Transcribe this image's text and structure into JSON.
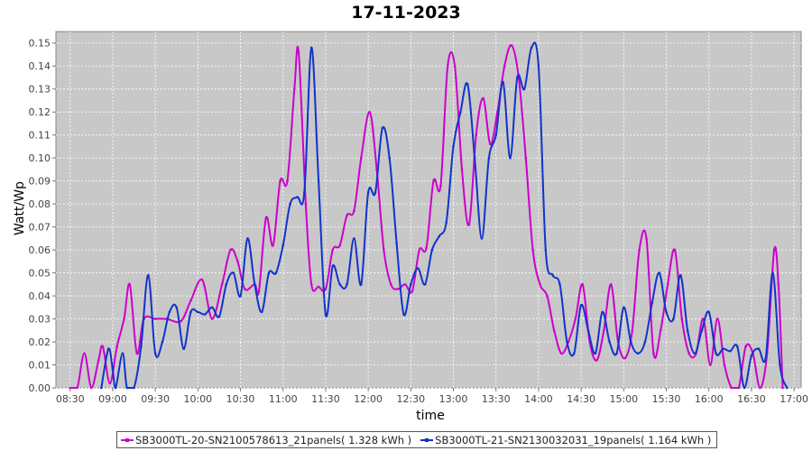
{
  "chart_data": {
    "type": "line",
    "title": "17-11-2023",
    "xlabel": "time",
    "ylabel": "Watt/Wp",
    "xlim": [
      "08:20",
      "17:05"
    ],
    "ylim": [
      0,
      0.155
    ],
    "x_ticks": [
      "08:30",
      "09:00",
      "09:30",
      "10:00",
      "10:30",
      "11:00",
      "11:30",
      "12:00",
      "12:30",
      "13:00",
      "13:30",
      "14:00",
      "14:30",
      "15:00",
      "15:30",
      "16:00",
      "16:30",
      "17:00"
    ],
    "y_ticks": [
      "0.00",
      "0.01",
      "0.02",
      "0.03",
      "0.04",
      "0.05",
      "0.06",
      "0.07",
      "0.08",
      "0.09",
      "0.10",
      "0.11",
      "0.12",
      "0.13",
      "0.14",
      "0.15"
    ],
    "grid": true,
    "legend_position": "bottom",
    "series": [
      {
        "name": "SB3000TL-20-SN2100578613_21panels( 1.328 kWh )",
        "color": "#cc00cc",
        "points": [
          [
            "08:30",
            0
          ],
          [
            "08:35",
            0
          ],
          [
            "08:40",
            0.015
          ],
          [
            "08:45",
            0
          ],
          [
            "08:50",
            0.012
          ],
          [
            "08:53",
            0.018
          ],
          [
            "08:58",
            0.002
          ],
          [
            "09:03",
            0.018
          ],
          [
            "09:08",
            0.03
          ],
          [
            "09:12",
            0.045
          ],
          [
            "09:17",
            0.015
          ],
          [
            "09:22",
            0.03
          ],
          [
            "09:30",
            0.03
          ],
          [
            "09:38",
            0.03
          ],
          [
            "09:48",
            0.029
          ],
          [
            "09:55",
            0.038
          ],
          [
            "10:03",
            0.047
          ],
          [
            "10:10",
            0.03
          ],
          [
            "10:17",
            0.045
          ],
          [
            "10:23",
            0.06
          ],
          [
            "10:28",
            0.055
          ],
          [
            "10:33",
            0.043
          ],
          [
            "10:40",
            0.045
          ],
          [
            "10:43",
            0.042
          ],
          [
            "10:48",
            0.074
          ],
          [
            "10:53",
            0.062
          ],
          [
            "10:58",
            0.09
          ],
          [
            "11:03",
            0.09
          ],
          [
            "11:08",
            0.13
          ],
          [
            "11:11",
            0.146
          ],
          [
            "11:16",
            0.08
          ],
          [
            "11:20",
            0.045
          ],
          [
            "11:25",
            0.044
          ],
          [
            "11:30",
            0.043
          ],
          [
            "11:35",
            0.06
          ],
          [
            "11:40",
            0.062
          ],
          [
            "11:45",
            0.075
          ],
          [
            "11:50",
            0.077
          ],
          [
            "11:55",
            0.1
          ],
          [
            "12:01",
            0.12
          ],
          [
            "12:06",
            0.095
          ],
          [
            "12:11",
            0.06
          ],
          [
            "12:16",
            0.045
          ],
          [
            "12:21",
            0.043
          ],
          [
            "12:26",
            0.045
          ],
          [
            "12:31",
            0.042
          ],
          [
            "12:36",
            0.06
          ],
          [
            "12:41",
            0.061
          ],
          [
            "12:46",
            0.09
          ],
          [
            "12:51",
            0.088
          ],
          [
            "12:56",
            0.14
          ],
          [
            "13:01",
            0.14
          ],
          [
            "13:06",
            0.095
          ],
          [
            "13:11",
            0.071
          ],
          [
            "13:16",
            0.11
          ],
          [
            "13:21",
            0.126
          ],
          [
            "13:26",
            0.106
          ],
          [
            "13:31",
            0.12
          ],
          [
            "13:36",
            0.14
          ],
          [
            "13:41",
            0.149
          ],
          [
            "13:46",
            0.135
          ],
          [
            "13:51",
            0.1
          ],
          [
            "13:56",
            0.06
          ],
          [
            "14:01",
            0.045
          ],
          [
            "14:06",
            0.04
          ],
          [
            "14:11",
            0.025
          ],
          [
            "14:16",
            0.015
          ],
          [
            "14:21",
            0.02
          ],
          [
            "14:26",
            0.03
          ],
          [
            "14:31",
            0.045
          ],
          [
            "14:36",
            0.02
          ],
          [
            "14:41",
            0.012
          ],
          [
            "14:46",
            0.025
          ],
          [
            "14:51",
            0.045
          ],
          [
            "14:56",
            0.02
          ],
          [
            "15:01",
            0.013
          ],
          [
            "15:06",
            0.025
          ],
          [
            "15:11",
            0.06
          ],
          [
            "15:16",
            0.065
          ],
          [
            "15:21",
            0.015
          ],
          [
            "15:26",
            0.025
          ],
          [
            "15:31",
            0.045
          ],
          [
            "15:36",
            0.06
          ],
          [
            "15:41",
            0.03
          ],
          [
            "15:46",
            0.015
          ],
          [
            "15:51",
            0.015
          ],
          [
            "15:56",
            0.03
          ],
          [
            "16:01",
            0.01
          ],
          [
            "16:06",
            0.03
          ],
          [
            "16:11",
            0.01
          ],
          [
            "16:16",
            0
          ],
          [
            "16:21",
            0
          ],
          [
            "16:26",
            0.018
          ],
          [
            "16:31",
            0.015
          ],
          [
            "16:36",
            0
          ],
          [
            "16:41",
            0.015
          ],
          [
            "16:46",
            0.06
          ],
          [
            "16:49",
            0.045
          ],
          [
            "16:52",
            0
          ]
        ]
      },
      {
        "name": "SB3000TL-21-SN2130032031_19panels( 1.164 kWh )",
        "color": "#1133cc",
        "points": [
          [
            "08:52",
            0
          ],
          [
            "08:57",
            0.017
          ],
          [
            "09:00",
            0.008
          ],
          [
            "09:02",
            0
          ],
          [
            "09:07",
            0.015
          ],
          [
            "09:10",
            0
          ],
          [
            "09:15",
            0
          ],
          [
            "09:20",
            0.018
          ],
          [
            "09:25",
            0.049
          ],
          [
            "09:30",
            0.015
          ],
          [
            "09:35",
            0.02
          ],
          [
            "09:40",
            0.033
          ],
          [
            "09:45",
            0.035
          ],
          [
            "09:50",
            0.017
          ],
          [
            "09:55",
            0.033
          ],
          [
            "10:00",
            0.033
          ],
          [
            "10:05",
            0.032
          ],
          [
            "10:10",
            0.035
          ],
          [
            "10:15",
            0.031
          ],
          [
            "10:20",
            0.045
          ],
          [
            "10:25",
            0.05
          ],
          [
            "10:30",
            0.04
          ],
          [
            "10:35",
            0.065
          ],
          [
            "10:40",
            0.045
          ],
          [
            "10:45",
            0.033
          ],
          [
            "10:50",
            0.05
          ],
          [
            "10:55",
            0.05
          ],
          [
            "11:00",
            0.062
          ],
          [
            "11:05",
            0.08
          ],
          [
            "11:10",
            0.083
          ],
          [
            "11:15",
            0.085
          ],
          [
            "11:20",
            0.148
          ],
          [
            "11:25",
            0.09
          ],
          [
            "11:30",
            0.032
          ],
          [
            "11:35",
            0.053
          ],
          [
            "11:40",
            0.045
          ],
          [
            "11:45",
            0.045
          ],
          [
            "11:50",
            0.065
          ],
          [
            "11:55",
            0.045
          ],
          [
            "12:00",
            0.085
          ],
          [
            "12:05",
            0.085
          ],
          [
            "12:10",
            0.113
          ],
          [
            "12:15",
            0.1
          ],
          [
            "12:20",
            0.063
          ],
          [
            "12:25",
            0.032
          ],
          [
            "12:30",
            0.045
          ],
          [
            "12:35",
            0.052
          ],
          [
            "12:40",
            0.045
          ],
          [
            "12:45",
            0.06
          ],
          [
            "12:50",
            0.066
          ],
          [
            "12:55",
            0.072
          ],
          [
            "13:00",
            0.105
          ],
          [
            "13:05",
            0.12
          ],
          [
            "13:10",
            0.132
          ],
          [
            "13:15",
            0.1
          ],
          [
            "13:20",
            0.065
          ],
          [
            "13:25",
            0.1
          ],
          [
            "13:30",
            0.11
          ],
          [
            "13:35",
            0.133
          ],
          [
            "13:40",
            0.1
          ],
          [
            "13:45",
            0.135
          ],
          [
            "13:50",
            0.13
          ],
          [
            "13:55",
            0.148
          ],
          [
            "14:00",
            0.14
          ],
          [
            "14:05",
            0.06
          ],
          [
            "14:10",
            0.049
          ],
          [
            "14:15",
            0.045
          ],
          [
            "14:20",
            0.02
          ],
          [
            "14:25",
            0.015
          ],
          [
            "14:30",
            0.036
          ],
          [
            "14:35",
            0.025
          ],
          [
            "14:40",
            0.015
          ],
          [
            "14:45",
            0.033
          ],
          [
            "14:50",
            0.02
          ],
          [
            "14:55",
            0.015
          ],
          [
            "15:00",
            0.035
          ],
          [
            "15:05",
            0.02
          ],
          [
            "15:10",
            0.015
          ],
          [
            "15:15",
            0.02
          ],
          [
            "15:20",
            0.037
          ],
          [
            "15:25",
            0.05
          ],
          [
            "15:30",
            0.033
          ],
          [
            "15:35",
            0.03
          ],
          [
            "15:40",
            0.049
          ],
          [
            "15:45",
            0.025
          ],
          [
            "15:50",
            0.015
          ],
          [
            "15:55",
            0.025
          ],
          [
            "16:00",
            0.033
          ],
          [
            "16:05",
            0.015
          ],
          [
            "16:10",
            0.017
          ],
          [
            "16:15",
            0.016
          ],
          [
            "16:20",
            0.018
          ],
          [
            "16:25",
            0
          ],
          [
            "16:30",
            0.014
          ],
          [
            "16:35",
            0.017
          ],
          [
            "16:40",
            0.013
          ],
          [
            "16:45",
            0.05
          ],
          [
            "16:50",
            0.01
          ],
          [
            "16:55",
            0
          ]
        ]
      }
    ]
  }
}
